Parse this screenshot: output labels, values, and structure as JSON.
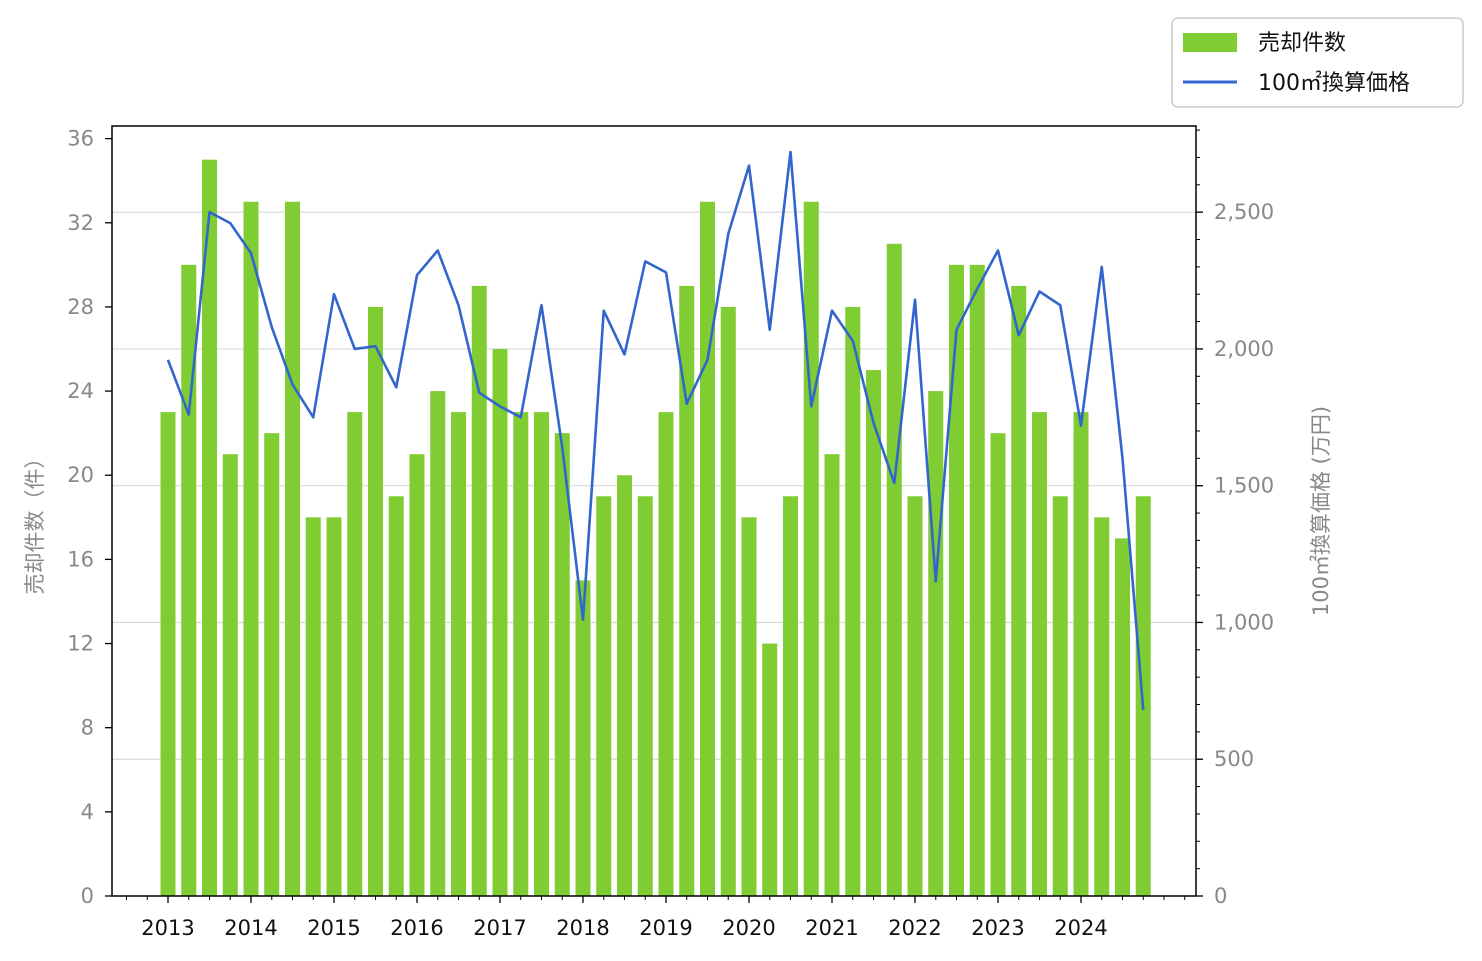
{
  "chart_data": {
    "type": "bar+line",
    "title": "",
    "x_tick_labels": [
      "2013",
      "2014",
      "2015",
      "2016",
      "2017",
      "2018",
      "2019",
      "2020",
      "2021",
      "2022",
      "2023",
      "2024"
    ],
    "quarters_per_year": 4,
    "series": [
      {
        "name": "売却件数",
        "type": "bar",
        "axis": "left",
        "color": "#7fcc33",
        "values": [
          23,
          30,
          35,
          21,
          33,
          22,
          33,
          18,
          18,
          23,
          28,
          19,
          21,
          24,
          23,
          29,
          26,
          23,
          23,
          22,
          15,
          19,
          20,
          19,
          23,
          29,
          33,
          28,
          18,
          12,
          19,
          33,
          21,
          28,
          25,
          31,
          19,
          24,
          30,
          30,
          22,
          29,
          23,
          19,
          23,
          18,
          17,
          19
        ]
      },
      {
        "name": "100㎡換算価格",
        "type": "line",
        "axis": "right",
        "color": "#3366cc",
        "values": [
          1960,
          1760,
          2500,
          2460,
          2350,
          2080,
          1870,
          1750,
          2200,
          2000,
          2010,
          1860,
          2270,
          2360,
          2160,
          1840,
          1790,
          1750,
          2160,
          1640,
          1010,
          2140,
          1980,
          2320,
          2280,
          1800,
          1960,
          2420,
          2670,
          2070,
          2720,
          1790,
          2140,
          2030,
          1730,
          1510,
          2180,
          1150,
          2070,
          2220,
          2360,
          2050,
          2210,
          2160,
          1720,
          2300,
          1600,
          680
        ]
      }
    ],
    "left_axis": {
      "label": "売却件数（件）",
      "range": [
        0,
        36.6
      ],
      "ticks": [
        0,
        4,
        8,
        12,
        16,
        20,
        24,
        28,
        32,
        36
      ]
    },
    "right_axis": {
      "label": "100㎡換算価格 (万円)",
      "range": [
        0,
        2815
      ],
      "ticks": [
        0,
        500,
        1000,
        1500,
        2000,
        2500
      ],
      "tick_labels": [
        "0",
        "500",
        "1,000",
        "1,500",
        "2,000",
        "2,500"
      ]
    },
    "grid": "horizontal, right axis",
    "legend": {
      "position": "top-right, outside",
      "entries": [
        "売却件数",
        "100㎡換算価格"
      ]
    }
  }
}
